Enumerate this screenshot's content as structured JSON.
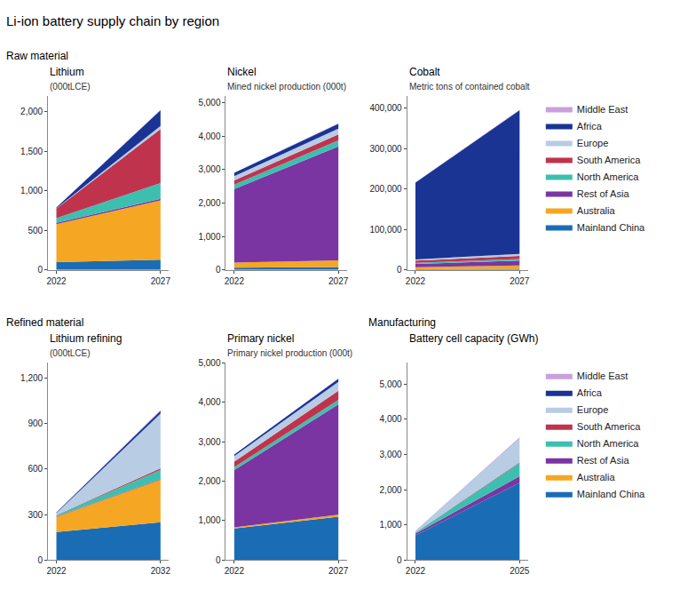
{
  "title": "Li-ion battery supply chain by region",
  "chart_data": [
    {
      "type": "area",
      "stacked": true,
      "grid": false,
      "legend": "right",
      "annotations": [
        "Raw material"
      ],
      "title": "Lithium",
      "subtitle": "(000tLCE)",
      "x": [
        2022,
        2027
      ],
      "xlim": [
        2021.6,
        2027.4
      ],
      "xticks": [
        2022,
        2027
      ],
      "ylim": [
        0,
        2200
      ],
      "yticks": [
        0,
        500,
        {
          "value": 1000,
          "label": "1,000"
        },
        {
          "value": 1500,
          "label": "1,500"
        },
        {
          "value": 2000,
          "label": "2,000"
        }
      ],
      "series": [
        {
          "name": "Mainland China",
          "color": "#1a6db5",
          "values": [
            100,
            130
          ]
        },
        {
          "name": "Australia",
          "color": "#f5a623",
          "values": [
            480,
            750
          ]
        },
        {
          "name": "Rest of Asia",
          "color": "#7b35a2",
          "values": [
            15,
            20
          ]
        },
        {
          "name": "North America",
          "color": "#3dbfb0",
          "values": [
            60,
            200
          ]
        },
        {
          "name": "South America",
          "color": "#c0334d",
          "values": [
            120,
            680
          ]
        },
        {
          "name": "Europe",
          "color": "#b8cce4",
          "values": [
            5,
            40
          ]
        },
        {
          "name": "Africa",
          "color": "#1a3494",
          "values": [
            10,
            200
          ]
        },
        {
          "name": "Middle East",
          "color": "#c9a0dc",
          "values": [
            1,
            5
          ]
        }
      ]
    },
    {
      "type": "area",
      "stacked": true,
      "grid": false,
      "title": "Nickel",
      "subtitle": "Mined nickel production (000t)",
      "x": [
        2022,
        2027
      ],
      "xlim": [
        2021.6,
        2027.4
      ],
      "xticks": [
        2022,
        2027
      ],
      "ylim": [
        0,
        5200
      ],
      "yticks": [
        0,
        {
          "value": 1000,
          "label": "1,000"
        },
        {
          "value": 2000,
          "label": "2,000"
        },
        {
          "value": 3000,
          "label": "3,000"
        },
        {
          "value": 4000,
          "label": "4,000"
        },
        {
          "value": 5000,
          "label": "5,000"
        }
      ],
      "series": [
        {
          "name": "Mainland China",
          "color": "#1a6db5",
          "values": [
            70,
            90
          ]
        },
        {
          "name": "Australia",
          "color": "#f5a623",
          "values": [
            150,
            200
          ]
        },
        {
          "name": "Rest of Asia",
          "color": "#7b35a2",
          "values": [
            2200,
            3400
          ]
        },
        {
          "name": "North America",
          "color": "#3dbfb0",
          "values": [
            130,
            180
          ]
        },
        {
          "name": "South America",
          "color": "#c0334d",
          "values": [
            130,
            180
          ]
        },
        {
          "name": "Europe",
          "color": "#b8cce4",
          "values": [
            120,
            170
          ]
        },
        {
          "name": "Africa",
          "color": "#1a3494",
          "values": [
            100,
            150
          ]
        },
        {
          "name": "Middle East",
          "color": "#c9a0dc",
          "values": [
            5,
            10
          ]
        }
      ]
    },
    {
      "type": "area",
      "stacked": true,
      "grid": false,
      "title": "Cobalt",
      "subtitle": "Metric tons of contained cobalt",
      "x": [
        2022,
        2027
      ],
      "xlim": [
        2021.6,
        2027.4
      ],
      "xticks": [
        2022,
        2027
      ],
      "ylim": [
        0,
        430000
      ],
      "yticks": [
        0,
        {
          "value": 100000,
          "label": "100,000"
        },
        {
          "value": 200000,
          "label": "200,000"
        },
        {
          "value": 300000,
          "label": "300,000"
        },
        {
          "value": 400000,
          "label": "400,000"
        }
      ],
      "series": [
        {
          "name": "Mainland China",
          "color": "#1a6db5",
          "values": [
            2000,
            3000
          ]
        },
        {
          "name": "Australia",
          "color": "#f5a623",
          "values": [
            5000,
            8000
          ]
        },
        {
          "name": "Rest of Asia",
          "color": "#7b35a2",
          "values": [
            8000,
            12000
          ]
        },
        {
          "name": "North America",
          "color": "#3dbfb0",
          "values": [
            3000,
            4000
          ]
        },
        {
          "name": "South America",
          "color": "#c0334d",
          "values": [
            5000,
            8000
          ]
        },
        {
          "name": "Europe",
          "color": "#b8cce4",
          "values": [
            3000,
            5000
          ]
        },
        {
          "name": "Africa",
          "color": "#1a3494",
          "values": [
            190000,
            355000
          ]
        },
        {
          "name": "Middle East",
          "color": "#c9a0dc",
          "values": [
            500,
            1000
          ]
        }
      ]
    },
    {
      "type": "area",
      "stacked": true,
      "grid": false,
      "legend": "right",
      "annotations": [
        "Refined material"
      ],
      "title": "Lithium refining",
      "subtitle": "(000tLCE)",
      "x": [
        2022,
        2032
      ],
      "xlim": [
        2021.2,
        2032.8
      ],
      "xticks": [
        2022,
        2032
      ],
      "ylim": [
        0,
        1300
      ],
      "yticks": [
        0,
        300,
        600,
        900,
        {
          "value": 1200,
          "label": "1,200"
        }
      ],
      "series": [
        {
          "name": "Mainland China",
          "color": "#1a6db5",
          "values": [
            185,
            250
          ]
        },
        {
          "name": "Australia",
          "color": "#f5a623",
          "values": [
            100,
            280
          ]
        },
        {
          "name": "Rest of Asia",
          "color": "#7b35a2",
          "values": [
            2,
            5
          ]
        },
        {
          "name": "North America",
          "color": "#3dbfb0",
          "values": [
            8,
            60
          ]
        },
        {
          "name": "South America",
          "color": "#c0334d",
          "values": [
            2,
            10
          ]
        },
        {
          "name": "Europe",
          "color": "#b8cce4",
          "values": [
            12,
            360
          ]
        },
        {
          "name": "Africa",
          "color": "#1a3494",
          "values": [
            5,
            20
          ]
        },
        {
          "name": "Middle East",
          "color": "#c9a0dc",
          "values": [
            1,
            5
          ]
        }
      ]
    },
    {
      "type": "area",
      "stacked": true,
      "grid": false,
      "title": "Primary nickel",
      "subtitle": "Primary nickel production (000t)",
      "x": [
        2022,
        2027
      ],
      "xlim": [
        2021.6,
        2027.4
      ],
      "xticks": [
        2022,
        2027
      ],
      "ylim": [
        0,
        5000
      ],
      "yticks": [
        0,
        {
          "value": 1000,
          "label": "1,000"
        },
        {
          "value": 2000,
          "label": "2,000"
        },
        {
          "value": 3000,
          "label": "3,000"
        },
        {
          "value": 4000,
          "label": "4,000"
        },
        {
          "value": 5000,
          "label": "5,000"
        }
      ],
      "series": [
        {
          "name": "Mainland China",
          "color": "#1a6db5",
          "values": [
            800,
            1100
          ]
        },
        {
          "name": "Australia",
          "color": "#f5a623",
          "values": [
            30,
            50
          ]
        },
        {
          "name": "Rest of Asia",
          "color": "#7b35a2",
          "values": [
            1450,
            2800
          ]
        },
        {
          "name": "North America",
          "color": "#3dbfb0",
          "values": [
            75,
            110
          ]
        },
        {
          "name": "South America",
          "color": "#c0334d",
          "values": [
            140,
            230
          ]
        },
        {
          "name": "Europe",
          "color": "#b8cce4",
          "values": [
            140,
            230
          ]
        },
        {
          "name": "Africa",
          "color": "#1a3494",
          "values": [
            40,
            75
          ]
        },
        {
          "name": "Middle East",
          "color": "#c9a0dc",
          "values": [
            1,
            5
          ]
        }
      ]
    },
    {
      "type": "area",
      "stacked": true,
      "grid": false,
      "annotations": [
        "Manufacturing"
      ],
      "title": "Battery cell capacity (GWh)",
      "x": [
        2022,
        2025
      ],
      "xlim": [
        2021.76,
        2025.24
      ],
      "xticks": [
        2022,
        2025
      ],
      "ylim": [
        0,
        5600
      ],
      "yticks": [
        0,
        {
          "value": 1000,
          "label": "1,000"
        },
        {
          "value": 2000,
          "label": "2,000"
        },
        {
          "value": 3000,
          "label": "3,000"
        },
        {
          "value": 4000,
          "label": "4,000"
        },
        {
          "value": 5000,
          "label": "5,000"
        }
      ],
      "series": [
        {
          "name": "Mainland China",
          "color": "#1a6db5",
          "values": [
            700,
            2200
          ]
        },
        {
          "name": "Australia",
          "color": "#f5a623",
          "values": [
            0,
            0
          ]
        },
        {
          "name": "Rest of Asia",
          "color": "#7b35a2",
          "values": [
            50,
            180
          ]
        },
        {
          "name": "North America",
          "color": "#3dbfb0",
          "values": [
            30,
            380
          ]
        },
        {
          "name": "South America",
          "color": "#c0334d",
          "values": [
            3,
            20
          ]
        },
        {
          "name": "Europe",
          "color": "#b8cce4",
          "values": [
            50,
            680
          ]
        },
        {
          "name": "Africa",
          "color": "#1a3494",
          "values": [
            1,
            5
          ]
        },
        {
          "name": "Middle East",
          "color": "#c9a0dc",
          "values": [
            1,
            20
          ]
        }
      ]
    }
  ]
}
